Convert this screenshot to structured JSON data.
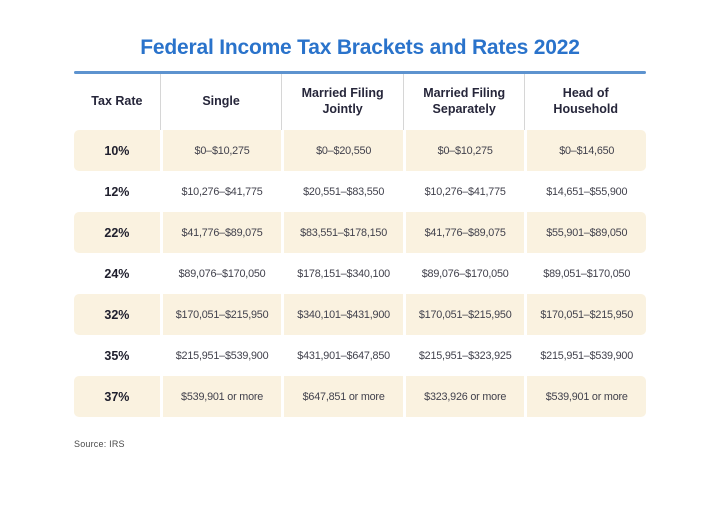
{
  "page": {
    "title": "Federal Income Tax Brackets and Rates 2022",
    "source_note": "Source: IRS"
  },
  "colors": {
    "title_blue": "#2a73cb",
    "rule_blue": "#5d93cf",
    "row_cream": "#faf2e0",
    "header_text": "#26263a",
    "value_text": "#41414c"
  },
  "chart_data": {
    "type": "table",
    "title": "Federal Income Tax Brackets and Rates 2022",
    "columns": [
      "Tax Rate",
      "Single",
      "Married Filing Jointly",
      "Married Filing Separately",
      "Head of Household"
    ],
    "rows": [
      [
        "10%",
        "$0–$10,275",
        "$0–$20,550",
        "$0–$10,275",
        "$0–$14,650"
      ],
      [
        "12%",
        "$10,276–$41,775",
        "$20,551–$83,550",
        "$10,276–$41,775",
        "$14,651–$55,900"
      ],
      [
        "22%",
        "$41,776–$89,075",
        "$83,551–$178,150",
        "$41,776–$89,075",
        "$55,901–$89,050"
      ],
      [
        "24%",
        "$89,076–$170,050",
        "$178,151–$340,100",
        "$89,076–$170,050",
        "$89,051–$170,050"
      ],
      [
        "32%",
        "$170,051–$215,950",
        "$340,101–$431,900",
        "$170,051–$215,950",
        "$170,051–$215,950"
      ],
      [
        "35%",
        "$215,951–$539,900",
        "$431,901–$647,850",
        "$215,951–$323,925",
        "$215,951–$539,900"
      ],
      [
        "37%",
        "$539,901 or more",
        "$647,851 or more",
        "$323,926 or more",
        "$539,901 or more"
      ]
    ],
    "source": "Source: IRS"
  }
}
